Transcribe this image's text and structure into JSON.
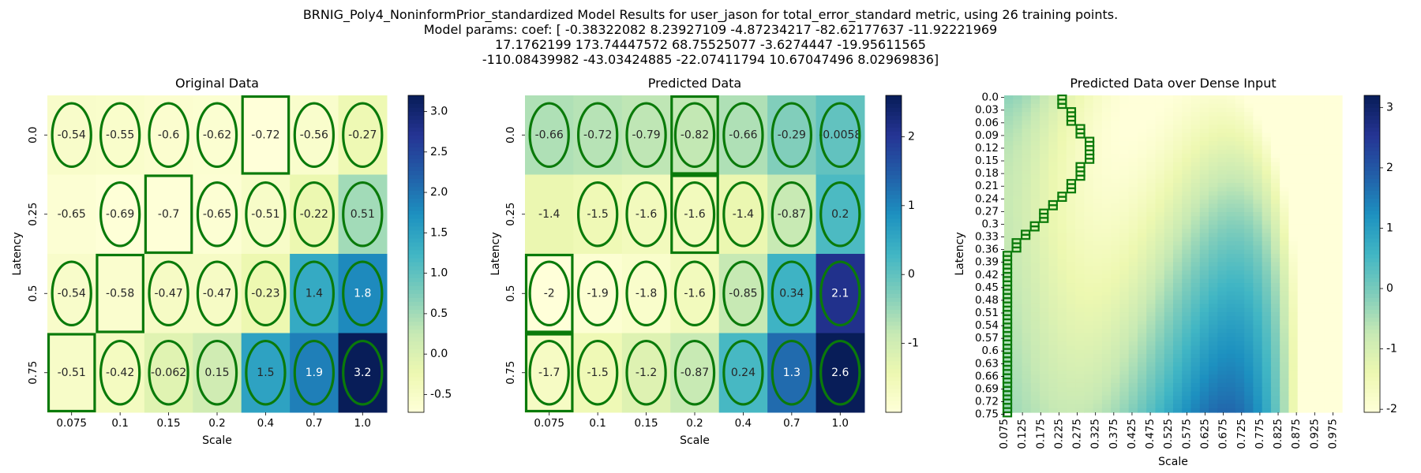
{
  "figure_title": [
    "BRNIG_Poly4_NoninformPrior_standardized Model Results for user_jason for total_error_standard metric, using 26 training points.",
    "Model params: coef: [  -0.38322082    8.23927109   -4.87234217  -82.62177637  -11.92221969",
    "17.1762199   173.74447572   68.75525077   -3.6274447   -19.95611565",
    "-110.08439982  -43.03424885  -22.07411794   10.67047496    8.02969836]"
  ],
  "colormap": {
    "name": "YlGnBu",
    "stops": [
      "#ffffd9",
      "#edf8b1",
      "#c7e9b4",
      "#7fcdbb",
      "#41b6c4",
      "#1d91c0",
      "#225ea8",
      "#253494",
      "#081d58"
    ]
  },
  "marker_color": "#0a7a0a",
  "model": {
    "coef": [
      -0.38322082,
      8.23927109,
      -4.87234217,
      -82.62177637,
      -11.92221969,
      17.1762199,
      173.74447572,
      68.75525077,
      -3.6274447,
      -19.95611565,
      -110.08439982,
      -43.03424885,
      -22.07411794,
      10.67047496,
      8.02969836
    ]
  },
  "chart_data": [
    {
      "type": "heatmap",
      "title": "Original Data",
      "xlabel": "Scale",
      "ylabel": "Latency",
      "x": [
        "0.075",
        "0.1",
        "0.15",
        "0.2",
        "0.4",
        "0.7",
        "1.0"
      ],
      "y": [
        "0.0",
        "0.25",
        "0.5",
        "0.75"
      ],
      "labels": [
        [
          "-0.54",
          "-0.55",
          "-0.6",
          "-0.62",
          "-0.72",
          "-0.56",
          "-0.27"
        ],
        [
          "-0.65",
          "-0.69",
          "-0.7",
          "-0.65",
          "-0.51",
          "-0.22",
          "0.51"
        ],
        [
          "-0.54",
          "-0.58",
          "-0.47",
          "-0.47",
          "-0.23",
          "1.4",
          "1.8"
        ],
        [
          "-0.51",
          "-0.42",
          "-0.062",
          "0.15",
          "1.5",
          "1.9",
          "3.2"
        ]
      ],
      "values": [
        [
          -0.54,
          -0.55,
          -0.6,
          -0.62,
          -0.72,
          -0.56,
          -0.27
        ],
        [
          -0.65,
          -0.69,
          -0.7,
          -0.65,
          -0.51,
          -0.22,
          0.51
        ],
        [
          -0.54,
          -0.58,
          -0.47,
          -0.47,
          -0.23,
          1.4,
          1.8
        ],
        [
          -0.51,
          -0.42,
          -0.062,
          0.15,
          1.5,
          1.9,
          3.2
        ]
      ],
      "ellipses": [
        [
          1,
          1,
          1,
          1,
          0,
          1,
          1
        ],
        [
          0,
          1,
          0,
          1,
          1,
          1,
          1
        ],
        [
          1,
          0,
          1,
          1,
          1,
          1,
          1
        ],
        [
          0,
          1,
          1,
          1,
          1,
          1,
          1
        ]
      ],
      "rect_markers": [
        [
          0,
          4
        ],
        [
          1,
          2
        ],
        [
          2,
          1
        ],
        [
          3,
          0
        ]
      ],
      "colorbar_range": [
        -0.72,
        3.2
      ],
      "colorbar_ticks": [
        "-0.5",
        "0.0",
        "0.5",
        "1.0",
        "1.5",
        "2.0",
        "2.5",
        "3.0"
      ],
      "grid": false
    },
    {
      "type": "heatmap",
      "title": "Predicted Data",
      "xlabel": "Scale",
      "ylabel": "Latency",
      "x": [
        "0.075",
        "0.1",
        "0.15",
        "0.2",
        "0.4",
        "0.7",
        "1.0"
      ],
      "y": [
        "0.0",
        "0.25",
        "0.5",
        "0.75"
      ],
      "labels": [
        [
          "-0.66",
          "-0.72",
          "-0.79",
          "-0.82",
          "-0.66",
          "-0.29",
          "-0.0058"
        ],
        [
          "-1.4",
          "-1.5",
          "-1.6",
          "-1.6",
          "-1.4",
          "-0.87",
          "0.2"
        ],
        [
          "-2",
          "-1.9",
          "-1.8",
          "-1.6",
          "-0.85",
          "0.34",
          "2.1"
        ],
        [
          "-1.7",
          "-1.5",
          "-1.2",
          "-0.87",
          "0.24",
          "1.3",
          "2.6"
        ]
      ],
      "values": [
        [
          -0.66,
          -0.72,
          -0.79,
          -0.82,
          -0.66,
          -0.29,
          -0.0058
        ],
        [
          -1.4,
          -1.5,
          -1.6,
          -1.6,
          -1.4,
          -0.87,
          0.2
        ],
        [
          -2,
          -1.9,
          -1.8,
          -1.6,
          -0.85,
          0.34,
          2.1
        ],
        [
          -1.7,
          -1.5,
          -1.2,
          -0.87,
          0.24,
          1.3,
          2.6
        ]
      ],
      "ellipses": [
        [
          1,
          1,
          1,
          1,
          1,
          1,
          1
        ],
        [
          0,
          1,
          1,
          1,
          1,
          1,
          1
        ],
        [
          1,
          1,
          1,
          1,
          1,
          1,
          1
        ],
        [
          1,
          1,
          1,
          1,
          1,
          1,
          1
        ]
      ],
      "rect_markers": [
        [
          0,
          3
        ],
        [
          1,
          3
        ],
        [
          2,
          0
        ],
        [
          3,
          0
        ]
      ],
      "colorbar_range": [
        -2.0,
        2.6
      ],
      "colorbar_ticks": [
        "-1",
        "0",
        "1",
        "2"
      ],
      "grid": false
    },
    {
      "type": "heatmap",
      "title": "Predicted Data over Dense Input",
      "xlabel": "Scale",
      "ylabel": "Latency",
      "x_ticks": [
        "0.075",
        "0.125",
        "0.175",
        "0.225",
        "0.275",
        "0.325",
        "0.375",
        "0.425",
        "0.475",
        "0.525",
        "0.575",
        "0.625",
        "0.675",
        "0.725",
        "0.775",
        "0.825",
        "0.875",
        "0.925",
        "0.975"
      ],
      "y_ticks": [
        "0.0",
        "0.03",
        "0.06",
        "0.09",
        "0.12",
        "0.15",
        "0.18",
        "0.21",
        "0.24",
        "0.27",
        "0.3",
        "0.33",
        "0.36",
        "0.39",
        "0.42",
        "0.45",
        "0.48",
        "0.51",
        "0.54",
        "0.57",
        "0.6",
        "0.63",
        "0.66",
        "0.69",
        "0.72",
        "0.75"
      ],
      "x_range": [
        0.075,
        1.0
      ],
      "y_range": [
        0.0,
        0.75
      ],
      "argmin_scale_per_latency": [
        [
          0.0,
          0.225
        ],
        [
          0.01,
          0.225
        ],
        [
          0.02,
          0.225
        ],
        [
          0.03,
          0.25
        ],
        [
          0.04,
          0.25
        ],
        [
          0.05,
          0.25
        ],
        [
          0.06,
          0.25
        ],
        [
          0.07,
          0.275
        ],
        [
          0.08,
          0.275
        ],
        [
          0.09,
          0.275
        ],
        [
          0.1,
          0.3
        ],
        [
          0.11,
          0.3
        ],
        [
          0.12,
          0.3
        ],
        [
          0.13,
          0.3
        ],
        [
          0.14,
          0.3
        ],
        [
          0.15,
          0.3
        ],
        [
          0.16,
          0.275
        ],
        [
          0.17,
          0.275
        ],
        [
          0.18,
          0.275
        ],
        [
          0.19,
          0.275
        ],
        [
          0.2,
          0.25
        ],
        [
          0.21,
          0.25
        ],
        [
          0.22,
          0.25
        ],
        [
          0.23,
          0.225
        ],
        [
          0.24,
          0.225
        ],
        [
          0.25,
          0.2
        ],
        [
          0.26,
          0.2
        ],
        [
          0.27,
          0.175
        ],
        [
          0.28,
          0.175
        ],
        [
          0.29,
          0.175
        ],
        [
          0.3,
          0.15
        ],
        [
          0.31,
          0.15
        ],
        [
          0.32,
          0.125
        ],
        [
          0.33,
          0.125
        ],
        [
          0.34,
          0.1
        ],
        [
          0.35,
          0.1
        ],
        [
          0.36,
          0.1
        ],
        [
          0.37,
          0.075
        ]
      ],
      "argmin_scale_below": 0.075,
      "colorbar_range": [
        -2.05,
        3.2
      ],
      "colorbar_ticks": [
        "-2",
        "-1",
        "0",
        "1",
        "2",
        "3"
      ],
      "grid": false
    }
  ]
}
